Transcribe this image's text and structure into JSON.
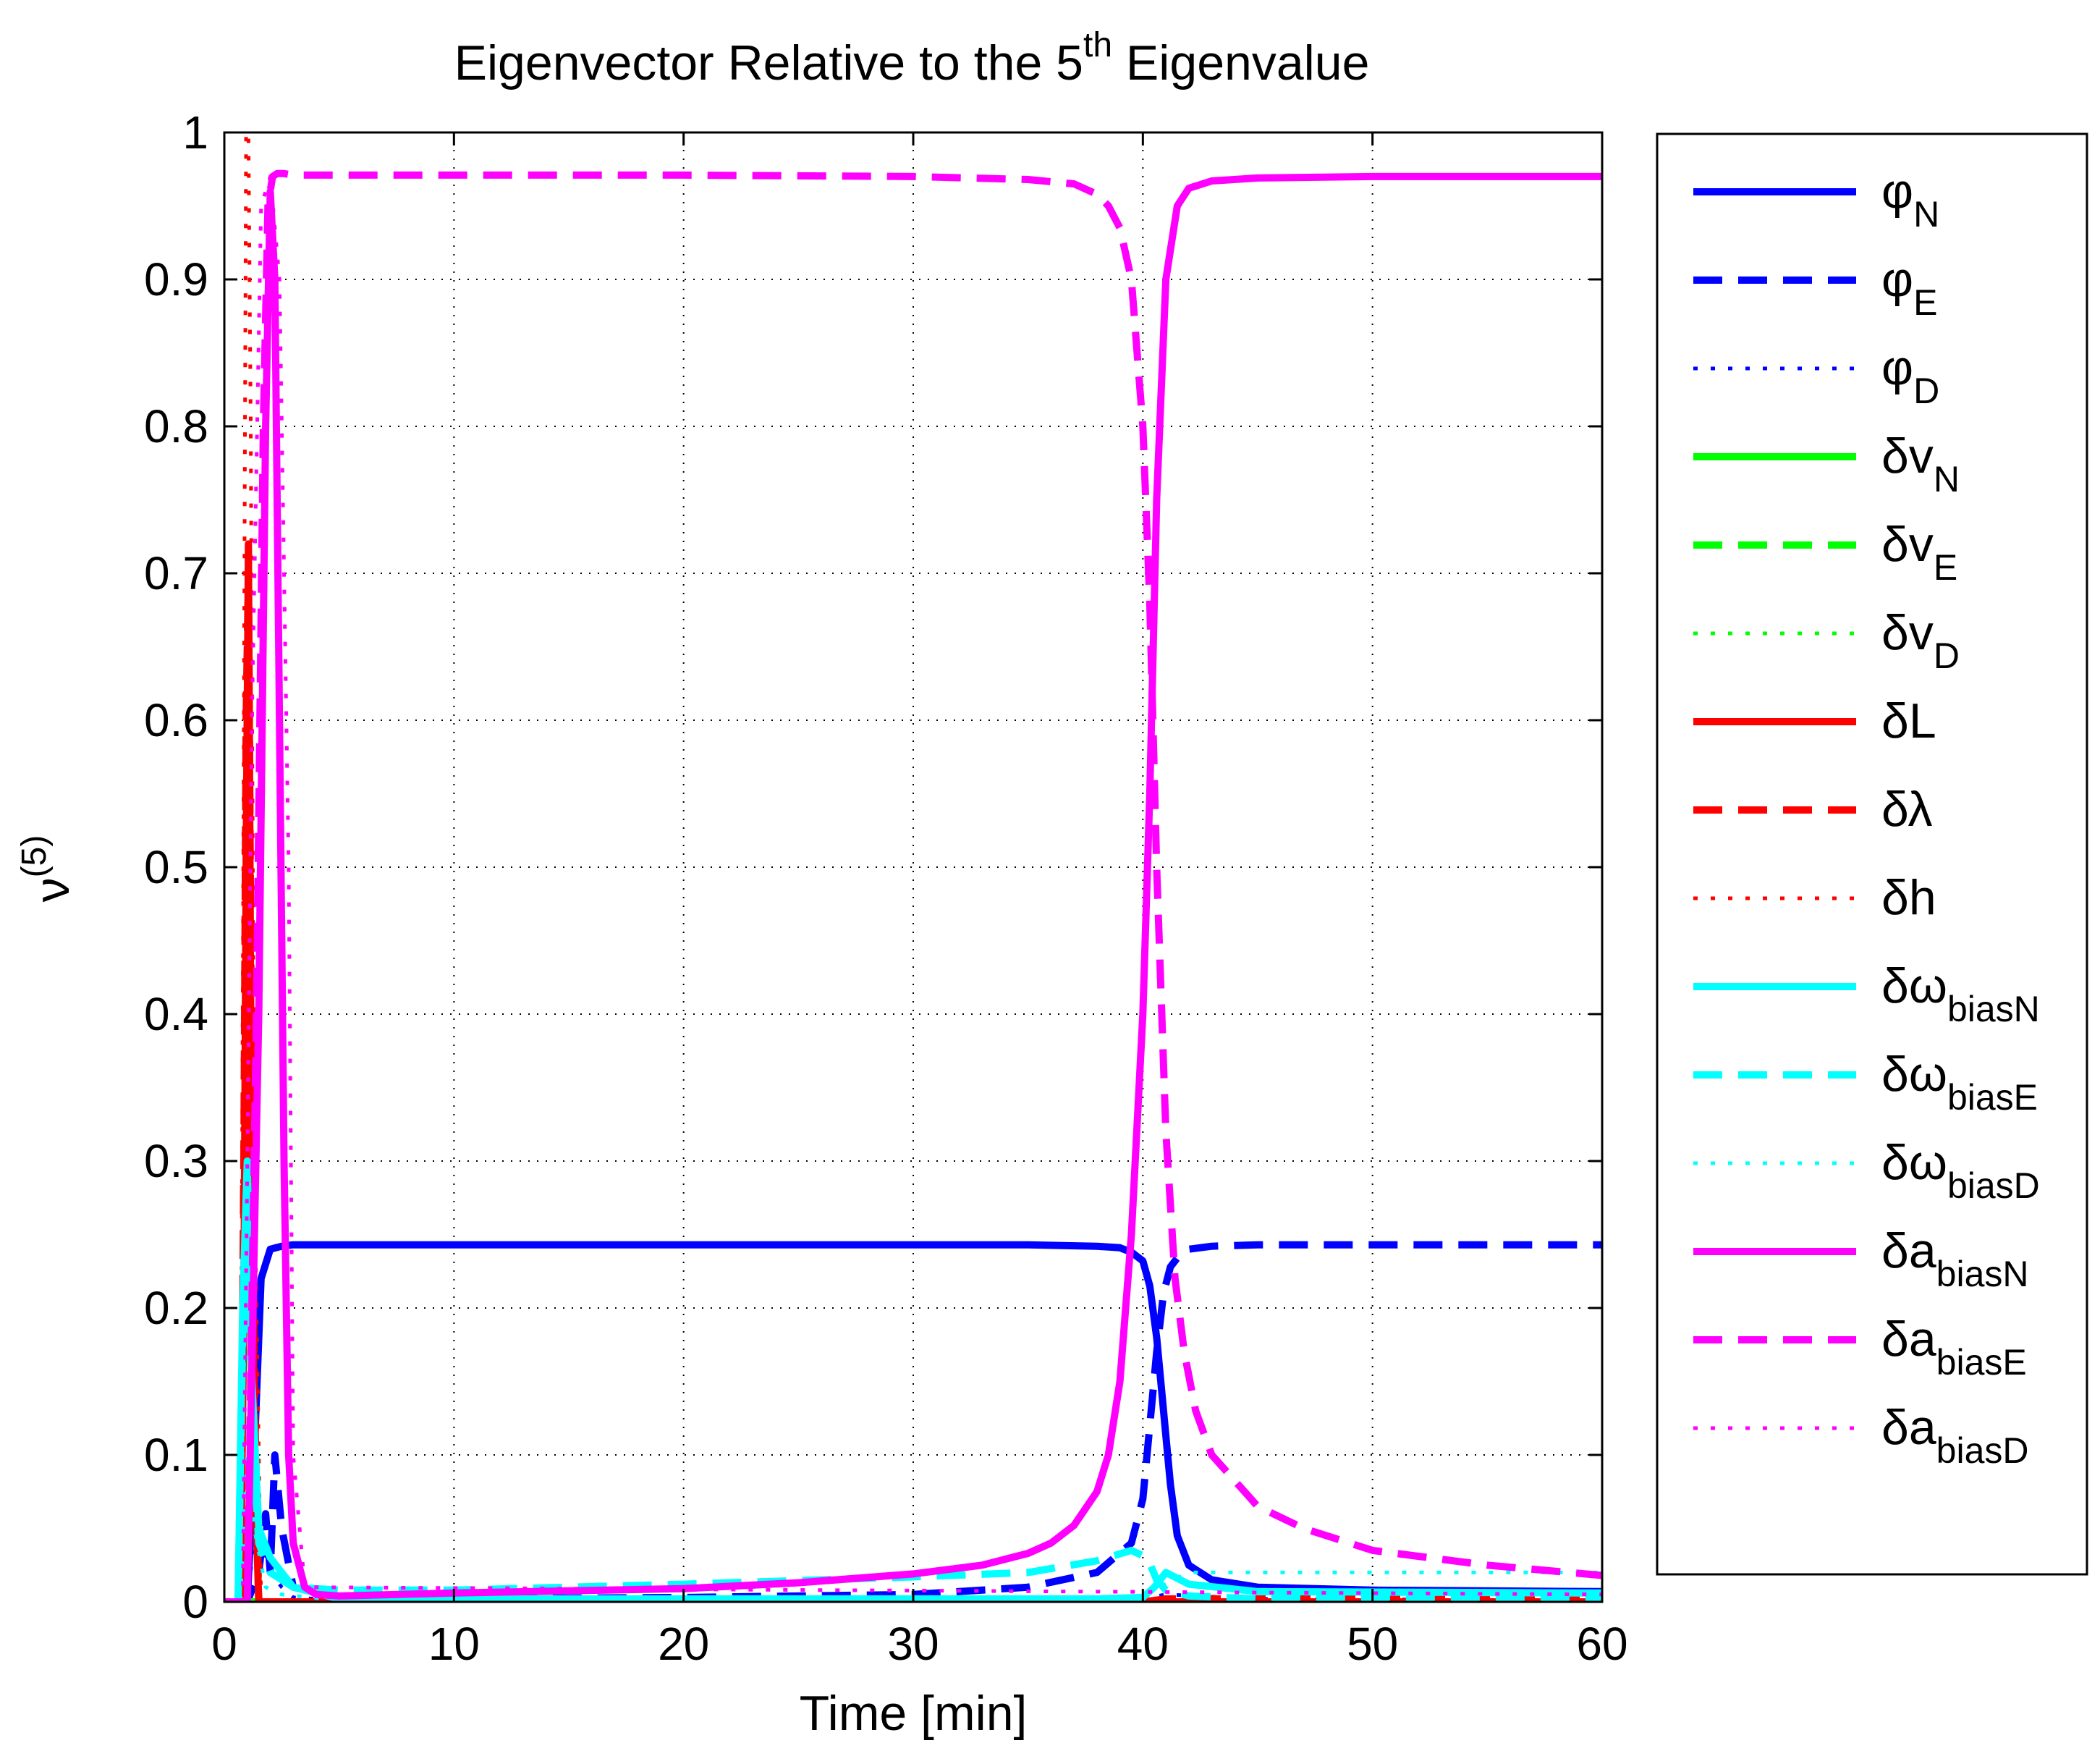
{
  "chart_data": {
    "type": "line",
    "title": "Eigenvector Relative to the 5",
    "title_superscript": "th",
    "title_suffix": " Eigenvalue",
    "xlabel": "Time [min]",
    "ylabel": "ν",
    "ylabel_superscript": "(5)",
    "xlim": [
      0,
      60
    ],
    "ylim": [
      0,
      1
    ],
    "xticks": [
      0,
      10,
      20,
      30,
      40,
      50,
      60
    ],
    "yticks": [
      0,
      0.1,
      0.2,
      0.3,
      0.4,
      0.5,
      0.6,
      0.7,
      0.8,
      0.9,
      1
    ],
    "grid": true,
    "legend_position": "outside-right",
    "series": [
      {
        "name": "φ",
        "sub": "N",
        "color": "#0000ff",
        "style": "solid",
        "x": [
          0.5,
          1,
          1.3,
          1.6,
          2,
          2.5,
          3,
          5,
          10,
          20,
          30,
          35,
          38,
          39,
          39.5,
          40,
          40.3,
          40.6,
          40.9,
          41.2,
          41.5,
          42,
          43,
          45,
          50,
          60
        ],
        "y": [
          0,
          0,
          0.1,
          0.22,
          0.24,
          0.242,
          0.243,
          0.243,
          0.243,
          0.243,
          0.243,
          0.243,
          0.242,
          0.241,
          0.238,
          0.232,
          0.215,
          0.18,
          0.13,
          0.08,
          0.045,
          0.025,
          0.015,
          0.01,
          0.008,
          0.007
        ]
      },
      {
        "name": "φ",
        "sub": "E",
        "color": "#0000ff",
        "style": "dashed",
        "x": [
          0.5,
          1,
          1.5,
          1.8,
          2,
          2.2,
          2.5,
          3,
          5,
          10,
          20,
          30,
          35,
          38,
          39.5,
          40,
          40.3,
          40.6,
          40.9,
          41.2,
          41.6,
          42,
          43,
          45,
          50,
          60
        ],
        "y": [
          0,
          0,
          0.02,
          0.06,
          0.02,
          0.1,
          0.05,
          0.01,
          0.003,
          0.002,
          0.003,
          0.005,
          0.01,
          0.02,
          0.04,
          0.07,
          0.12,
          0.17,
          0.21,
          0.228,
          0.236,
          0.24,
          0.242,
          0.243,
          0.243,
          0.243
        ]
      },
      {
        "name": "φ",
        "sub": "D",
        "color": "#0000ff",
        "style": "dotted",
        "x": [
          0.5,
          1,
          1.5,
          2,
          2.5,
          3,
          5,
          20,
          40,
          41,
          45,
          60
        ],
        "y": [
          0,
          0.01,
          0.05,
          0.02,
          0.01,
          0.003,
          0.001,
          0.001,
          0.002,
          0.005,
          0.002,
          0.001
        ]
      },
      {
        "name": "δv",
        "sub": "N",
        "color": "#00ff00",
        "style": "solid",
        "x": [
          0,
          60
        ],
        "y": [
          0,
          0
        ]
      },
      {
        "name": "δv",
        "sub": "E",
        "color": "#00ff00",
        "style": "dashed",
        "x": [
          0,
          60
        ],
        "y": [
          0,
          0
        ]
      },
      {
        "name": "δv",
        "sub": "D",
        "color": "#00ff00",
        "style": "dotted",
        "x": [
          0,
          60
        ],
        "y": [
          0,
          0
        ]
      },
      {
        "name": "δL",
        "sub": "",
        "color": "#ff0000",
        "style": "solid",
        "x": [
          0,
          0.7,
          0.85,
          0.95,
          1.05,
          1.15,
          1.3,
          1.5,
          60
        ],
        "y": [
          0,
          0,
          0.2,
          0.5,
          0.72,
          0.4,
          0.1,
          0,
          0
        ]
      },
      {
        "name": "δλ",
        "sub": "",
        "color": "#ff0000",
        "style": "dashed",
        "x": [
          0,
          0.7,
          0.85,
          0.95,
          1.05,
          1.15,
          1.3,
          1.5,
          40,
          41,
          60
        ],
        "y": [
          0,
          0,
          0.3,
          0.6,
          0.7,
          0.45,
          0.15,
          0,
          0,
          0.002,
          0.002
        ]
      },
      {
        "name": "δh",
        "sub": "",
        "color": "#ff0000",
        "style": "dotted",
        "x": [
          0,
          0.7,
          0.85,
          0.95,
          1.05,
          1.15,
          1.3,
          1.6,
          60
        ],
        "y": [
          0,
          0,
          0.6,
          1,
          1,
          0.8,
          0.3,
          0,
          0
        ]
      },
      {
        "name": "δω",
        "sub": "biasN",
        "color": "#00ffff",
        "style": "solid",
        "x": [
          0,
          0.6,
          0.8,
          1,
          1.2,
          1.5,
          2,
          2.5,
          3,
          5,
          20,
          38,
          40,
          40.5,
          41,
          42,
          45,
          60
        ],
        "y": [
          0,
          0,
          0.2,
          0.3,
          0.15,
          0.05,
          0.03,
          0.02,
          0.01,
          0.002,
          0.002,
          0.002,
          0.003,
          0.01,
          0.02,
          0.012,
          0.007,
          0.006
        ]
      },
      {
        "name": "δω",
        "sub": "biasE",
        "color": "#00ffff",
        "style": "dashed",
        "x": [
          0,
          0.6,
          0.8,
          1,
          1.2,
          1.5,
          2,
          3,
          5,
          10,
          20,
          30,
          35,
          38,
          39.5,
          40.2,
          40.6,
          41,
          42,
          45,
          50,
          60
        ],
        "y": [
          0,
          0,
          0.18,
          0.28,
          0.12,
          0.04,
          0.02,
          0.01,
          0.008,
          0.008,
          0.012,
          0.017,
          0.02,
          0.028,
          0.035,
          0.03,
          0.015,
          0.008,
          0.004,
          0.002,
          0.002,
          0.002
        ]
      },
      {
        "name": "δω",
        "sub": "biasD",
        "color": "#00ffff",
        "style": "dotted",
        "x": [
          0,
          0.7,
          1,
          1.3,
          1.8,
          2.5,
          5,
          20,
          38,
          40,
          41,
          42,
          44,
          50,
          60
        ],
        "y": [
          0,
          0,
          0.1,
          0.05,
          0.01,
          0.005,
          0.001,
          0.001,
          0.001,
          0.003,
          0.012,
          0.02,
          0.02,
          0.02,
          0.02
        ]
      },
      {
        "name": "δa",
        "sub": "biasN",
        "color": "#ff00ff",
        "style": "solid",
        "x": [
          0,
          1,
          1.5,
          1.8,
          2,
          2.2,
          2.4,
          2.6,
          2.8,
          3,
          3.5,
          4,
          5,
          10,
          20,
          25,
          30,
          33,
          35,
          36,
          37,
          38,
          38.5,
          39,
          39.5,
          40,
          40.3,
          40.6,
          41,
          41.5,
          42,
          43,
          45,
          50,
          60
        ],
        "y": [
          0,
          0,
          0.4,
          0.8,
          0.96,
          0.9,
          0.6,
          0.3,
          0.1,
          0.04,
          0.01,
          0.005,
          0.004,
          0.006,
          0.009,
          0.013,
          0.019,
          0.025,
          0.033,
          0.04,
          0.052,
          0.075,
          0.1,
          0.15,
          0.25,
          0.4,
          0.55,
          0.75,
          0.9,
          0.95,
          0.962,
          0.967,
          0.969,
          0.97,
          0.97
        ]
      },
      {
        "name": "δa",
        "sub": "biasE",
        "color": "#ff00ff",
        "style": "dashed",
        "x": [
          0,
          1,
          1.4,
          1.7,
          1.9,
          2.1,
          2.3,
          2.6,
          3,
          5,
          10,
          20,
          30,
          35,
          37,
          38,
          38.5,
          39,
          39.5,
          40,
          40.3,
          40.6,
          41,
          41.4,
          41.8,
          42.3,
          43,
          45,
          47,
          50,
          55,
          60
        ],
        "y": [
          0,
          0,
          0.4,
          0.8,
          0.95,
          0.97,
          0.972,
          0.972,
          0.971,
          0.971,
          0.971,
          0.971,
          0.97,
          0.968,
          0.965,
          0.958,
          0.95,
          0.935,
          0.9,
          0.8,
          0.68,
          0.5,
          0.32,
          0.22,
          0.17,
          0.13,
          0.1,
          0.065,
          0.05,
          0.035,
          0.025,
          0.018
        ]
      },
      {
        "name": "δa",
        "sub": "biasD",
        "color": "#ff00ff",
        "style": "dotted",
        "x": [
          0,
          0.8,
          1.2,
          1.6,
          2,
          2.4,
          2.8,
          3,
          3.5,
          60
        ],
        "y": [
          0,
          0,
          0.6,
          0.95,
          0.97,
          0.9,
          0.5,
          0.1,
          0.01,
          0.005
        ]
      }
    ]
  }
}
